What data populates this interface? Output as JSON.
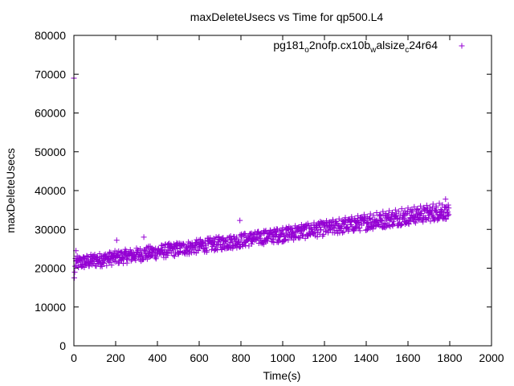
{
  "chart_data": {
    "type": "scatter",
    "title": "maxDeleteUsecs vs Time for qp500.L4",
    "xlabel": "Time(s)",
    "ylabel": "maxDeleteUsecs",
    "xlim": [
      0,
      2000
    ],
    "ylim": [
      0,
      80000
    ],
    "x_ticks": [
      0,
      200,
      400,
      600,
      800,
      1000,
      1200,
      1400,
      1600,
      1800,
      2000
    ],
    "y_ticks": [
      0,
      10000,
      20000,
      30000,
      40000,
      50000,
      60000,
      70000,
      80000
    ],
    "x_tick_labels": [
      "0",
      "200",
      "400",
      "600",
      "800",
      "1000",
      "1200",
      "1400",
      "1600",
      "1800",
      "2000"
    ],
    "y_tick_labels": [
      "0",
      "10000",
      "20000",
      "30000",
      "40000",
      "50000",
      "60000",
      "70000",
      "80000"
    ],
    "grid": false,
    "legend_position": "top-right",
    "marker": "+",
    "series": [
      {
        "name": "pg181_o2nofp.cx10b_walsize_c24r64",
        "legend_parts": [
          {
            "text": "pg181",
            "sub": false
          },
          {
            "text": "o",
            "sub": true
          },
          {
            "text": "2nofp.cx10b",
            "sub": false
          },
          {
            "text": "w",
            "sub": true
          },
          {
            "text": "alsize",
            "sub": false
          },
          {
            "text": "c",
            "sub": true
          },
          {
            "text": "24r64",
            "sub": false
          }
        ],
        "color": "#9400d3",
        "points": [
          [
            0,
            69000
          ],
          [
            2,
            17500
          ],
          [
            4,
            19000
          ],
          [
            6,
            20500
          ],
          [
            8,
            22500
          ],
          [
            10,
            24500
          ],
          [
            15,
            22000
          ],
          [
            20,
            21500
          ],
          [
            30,
            22000
          ],
          [
            40,
            21000
          ],
          [
            50,
            22500
          ],
          [
            60,
            21800
          ],
          [
            70,
            22200
          ],
          [
            80,
            23000
          ],
          [
            90,
            22500
          ],
          [
            100,
            23500
          ],
          [
            110,
            22800
          ],
          [
            120,
            22000
          ],
          [
            130,
            23000
          ],
          [
            140,
            22500
          ],
          [
            150,
            23200
          ],
          [
            160,
            22400
          ],
          [
            170,
            23800
          ],
          [
            180,
            22600
          ],
          [
            190,
            23100
          ],
          [
            200,
            22800
          ],
          [
            205,
            27200
          ],
          [
            215,
            23300
          ],
          [
            230,
            22900
          ],
          [
            245,
            23600
          ],
          [
            260,
            23100
          ],
          [
            275,
            24000
          ],
          [
            290,
            23400
          ],
          [
            305,
            24200
          ],
          [
            320,
            23600
          ],
          [
            335,
            28000
          ],
          [
            345,
            24400
          ],
          [
            360,
            23900
          ],
          [
            375,
            24700
          ],
          [
            390,
            24100
          ],
          [
            405,
            25000
          ],
          [
            420,
            24500
          ],
          [
            435,
            25300
          ],
          [
            450,
            24700
          ],
          [
            465,
            25600
          ],
          [
            480,
            25000
          ],
          [
            495,
            25800
          ],
          [
            510,
            25200
          ],
          [
            525,
            26100
          ],
          [
            540,
            25500
          ],
          [
            555,
            26300
          ],
          [
            570,
            25800
          ],
          [
            585,
            26600
          ],
          [
            600,
            26000
          ],
          [
            615,
            26800
          ],
          [
            630,
            26300
          ],
          [
            645,
            27000
          ],
          [
            660,
            26500
          ],
          [
            675,
            27300
          ],
          [
            690,
            26800
          ],
          [
            705,
            27500
          ],
          [
            720,
            27100
          ],
          [
            735,
            27800
          ],
          [
            750,
            27300
          ],
          [
            765,
            28100
          ],
          [
            780,
            27600
          ],
          [
            795,
            32300
          ],
          [
            805,
            28200
          ],
          [
            820,
            28800
          ],
          [
            835,
            28300
          ],
          [
            850,
            29000
          ],
          [
            865,
            28600
          ],
          [
            880,
            29300
          ],
          [
            895,
            28900
          ],
          [
            910,
            29600
          ],
          [
            925,
            29100
          ],
          [
            940,
            29800
          ],
          [
            955,
            29400
          ],
          [
            970,
            30100
          ],
          [
            985,
            29700
          ],
          [
            1000,
            30400
          ],
          [
            1015,
            30000
          ],
          [
            1030,
            30700
          ],
          [
            1045,
            30200
          ],
          [
            1060,
            30900
          ],
          [
            1075,
            30500
          ],
          [
            1090,
            31200
          ],
          [
            1105,
            30800
          ],
          [
            1120,
            31500
          ],
          [
            1135,
            31000
          ],
          [
            1150,
            31700
          ],
          [
            1165,
            31300
          ],
          [
            1180,
            32000
          ],
          [
            1195,
            31600
          ],
          [
            1210,
            32200
          ],
          [
            1225,
            31800
          ],
          [
            1240,
            32500
          ],
          [
            1255,
            32100
          ],
          [
            1270,
            32700
          ],
          [
            1285,
            32300
          ],
          [
            1300,
            33000
          ],
          [
            1315,
            32600
          ],
          [
            1330,
            33200
          ],
          [
            1345,
            32800
          ],
          [
            1360,
            33500
          ],
          [
            1375,
            33100
          ],
          [
            1390,
            33800
          ],
          [
            1405,
            33300
          ],
          [
            1420,
            34000
          ],
          [
            1435,
            33600
          ],
          [
            1450,
            34300
          ],
          [
            1465,
            33800
          ],
          [
            1480,
            34600
          ],
          [
            1495,
            34100
          ],
          [
            1510,
            34800
          ],
          [
            1525,
            34300
          ],
          [
            1540,
            35000
          ],
          [
            1555,
            34600
          ],
          [
            1570,
            35300
          ],
          [
            1585,
            34800
          ],
          [
            1600,
            35500
          ],
          [
            1615,
            35100
          ],
          [
            1630,
            35800
          ],
          [
            1645,
            35300
          ],
          [
            1660,
            36000
          ],
          [
            1675,
            35600
          ],
          [
            1690,
            36200
          ],
          [
            1705,
            35800
          ],
          [
            1720,
            36500
          ],
          [
            1735,
            36000
          ],
          [
            1750,
            36700
          ],
          [
            1765,
            36300
          ],
          [
            1780,
            37800
          ],
          [
            1790,
            34500
          ],
          [
            1795,
            33800
          ]
        ],
        "trend": {
          "x_start": 10,
          "x_end": 1795,
          "y_start": 21300,
          "y_end": 34500,
          "spread": 1800,
          "count": 900
        }
      }
    ]
  }
}
